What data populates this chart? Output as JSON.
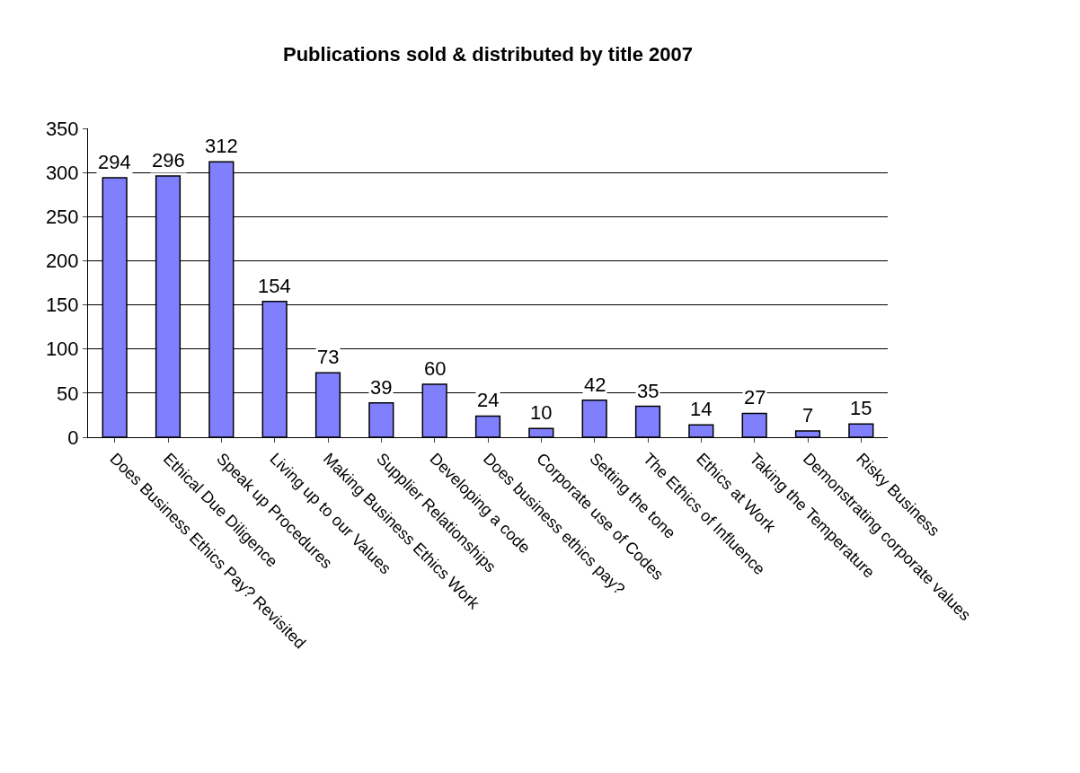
{
  "chart_data": {
    "type": "bar",
    "title": "Publications sold & distributed by title 2007",
    "categories": [
      "Does Business Ethics Pay? Revisited",
      "Ethical Due Diligence",
      "Speak up Procedures",
      "Living up to our Values",
      "Making Business Ethics Work",
      "Supplier Relationships",
      "Developing a code",
      "Does business ethics pay?",
      "Corporate use of Codes",
      "Setting the tone",
      "The Ethics of Influence",
      "Ethics at Work",
      "Taking the Temperature",
      "Demonstrating corporate values",
      "Risky Business"
    ],
    "values": [
      294,
      296,
      312,
      154,
      73,
      39,
      60,
      24,
      10,
      42,
      35,
      14,
      27,
      7,
      15
    ],
    "color": "#8080ff",
    "ylim": [
      0,
      350
    ],
    "yticks": [
      0,
      50,
      100,
      150,
      200,
      250,
      300,
      350
    ],
    "grid": "y",
    "data_labels": true
  }
}
